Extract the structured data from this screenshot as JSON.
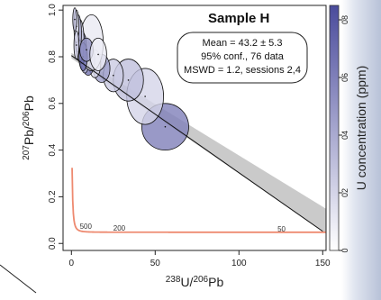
{
  "chart_data": {
    "type": "scatter",
    "title": "Sample H",
    "stats": {
      "mean": "Mean = 43.2 ± 5.3",
      "conf": "95% conf., 76 data",
      "mswd": "MSWD = 1.2, sessions 2,4"
    },
    "xlabel": {
      "sup": "238",
      "main": "U/",
      "sup2": "206",
      "main2": "Pb"
    },
    "ylabel": {
      "sup": "207",
      "main": "Pb/",
      "sup2": "206",
      "main2": "Pb"
    },
    "colorbar_label": "U concentration (ppm)",
    "xlim": [
      -5,
      152
    ],
    "ylim": [
      -0.03,
      1.02
    ],
    "xticks": [
      0,
      50,
      100,
      150
    ],
    "yticks": [
      0.0,
      0.2,
      0.4,
      0.6,
      0.8,
      1.0
    ],
    "ytick_labels": [
      "0.0",
      "0.2",
      "0.4",
      "0.6",
      "0.8",
      "1.0"
    ],
    "colorbar_ticks": [
      0,
      2,
      4,
      6,
      8
    ],
    "colorbar_tick_labels": [
      "0",
      "02",
      "04",
      "06",
      "08"
    ],
    "colorbar_range": [
      0,
      8.5
    ],
    "concordia_labels": [
      {
        "text": "500",
        "x": 5,
        "y": 0.062
      },
      {
        "text": "200",
        "x": 25,
        "y": 0.055
      },
      {
        "text": "50",
        "x": 123,
        "y": 0.052
      }
    ],
    "discordia": {
      "y_intercept": 0.805,
      "x_end": 150,
      "y_end": 0.052
    },
    "ellipses": [
      {
        "x": 56,
        "y": 0.5,
        "rx": 14,
        "ry": 0.1,
        "u": 6.0
      },
      {
        "x": 44,
        "y": 0.63,
        "rx": 11,
        "ry": 0.12,
        "u": 2.0
      },
      {
        "x": 34,
        "y": 0.7,
        "rx": 9,
        "ry": 0.09,
        "u": 3.0
      },
      {
        "x": 25,
        "y": 0.72,
        "rx": 6,
        "ry": 0.07,
        "u": 2.5
      },
      {
        "x": 18,
        "y": 0.75,
        "rx": 5,
        "ry": 0.06,
        "u": 4.5
      },
      {
        "x": 14,
        "y": 0.77,
        "rx": 3.5,
        "ry": 0.06,
        "u": 1.5
      },
      {
        "x": 10,
        "y": 0.79,
        "rx": 4,
        "ry": 0.07,
        "u": 6.5
      },
      {
        "x": 8,
        "y": 0.81,
        "rx": 3,
        "ry": 0.08,
        "u": 3.5
      },
      {
        "x": 12,
        "y": 0.86,
        "rx": 7,
        "ry": 0.12,
        "u": 1.0
      },
      {
        "x": 6,
        "y": 0.84,
        "rx": 3,
        "ry": 0.07,
        "u": 5.5
      },
      {
        "x": 5,
        "y": 0.87,
        "rx": 2.5,
        "ry": 0.09,
        "u": 2.0
      },
      {
        "x": 4,
        "y": 0.9,
        "rx": 2,
        "ry": 0.08,
        "u": 4.0
      },
      {
        "x": 3,
        "y": 0.93,
        "rx": 1.5,
        "ry": 0.07,
        "u": 1.2
      },
      {
        "x": 7,
        "y": 0.8,
        "rx": 2.5,
        "ry": 0.06,
        "u": 7.0
      },
      {
        "x": 2,
        "y": 0.96,
        "rx": 1.2,
        "ry": 0.05,
        "u": 3.0
      },
      {
        "x": 3,
        "y": 0.85,
        "rx": 1.5,
        "ry": 0.06,
        "u": 2.2
      },
      {
        "x": 9,
        "y": 0.83,
        "rx": 4,
        "ry": 0.05,
        "u": 5.0
      },
      {
        "x": 16,
        "y": 0.81,
        "rx": 5,
        "ry": 0.07,
        "u": 0.8
      }
    ]
  }
}
